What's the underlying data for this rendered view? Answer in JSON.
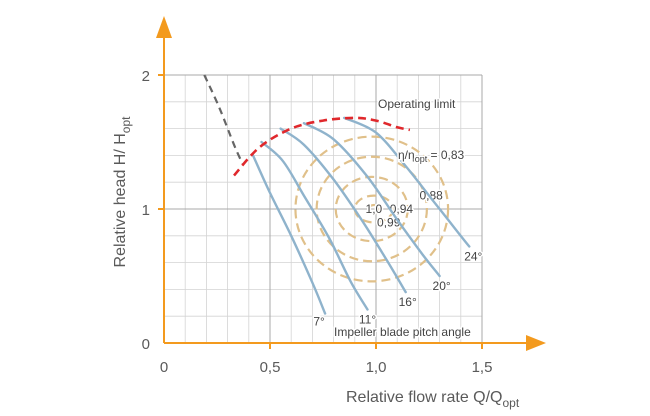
{
  "chart_data": {
    "type": "line",
    "xlabel": "Relative flow rate Q/Q",
    "xlabel_sub": "opt",
    "ylabel": "Relative head H/ H",
    "ylabel_sub": "opt",
    "xlim": [
      0,
      1.5
    ],
    "ylim": [
      0,
      2
    ],
    "x_ticks": [
      "0",
      "0,5",
      "1,0",
      "1,5"
    ],
    "y_ticks": [
      "0",
      "1",
      "2"
    ],
    "x_tick_values": [
      0,
      0.5,
      1.0,
      1.5
    ],
    "y_tick_values": [
      0,
      1,
      2
    ],
    "grid": true,
    "colors": {
      "axis": "#f39a1e",
      "curves": "#8fb3cc",
      "efficiency": "#e0c08a",
      "operating_limit": "#e0282c",
      "extension": "#666666",
      "grid": "#d4d4d4"
    },
    "series": [
      {
        "name": "7°",
        "points": [
          [
            0.42,
            1.4
          ],
          [
            0.5,
            1.12
          ],
          [
            0.6,
            0.8
          ],
          [
            0.7,
            0.45
          ],
          [
            0.76,
            0.22
          ]
        ]
      },
      {
        "name": "11°",
        "points": [
          [
            0.46,
            1.5
          ],
          [
            0.56,
            1.36
          ],
          [
            0.66,
            1.1
          ],
          [
            0.78,
            0.78
          ],
          [
            0.88,
            0.46
          ],
          [
            0.96,
            0.25
          ]
        ]
      },
      {
        "name": "16°",
        "points": [
          [
            0.55,
            1.6
          ],
          [
            0.66,
            1.48
          ],
          [
            0.8,
            1.22
          ],
          [
            0.94,
            0.9
          ],
          [
            1.05,
            0.62
          ],
          [
            1.14,
            0.38
          ]
        ]
      },
      {
        "name": "20°",
        "points": [
          [
            0.66,
            1.64
          ],
          [
            0.8,
            1.52
          ],
          [
            0.96,
            1.24
          ],
          [
            1.1,
            0.92
          ],
          [
            1.22,
            0.66
          ],
          [
            1.3,
            0.5
          ]
        ]
      },
      {
        "name": "24°",
        "points": [
          [
            0.85,
            1.68
          ],
          [
            1.0,
            1.57
          ],
          [
            1.14,
            1.32
          ],
          [
            1.26,
            1.08
          ],
          [
            1.34,
            0.92
          ],
          [
            1.44,
            0.72
          ]
        ]
      }
    ],
    "operating_limit": [
      [
        0.33,
        1.25
      ],
      [
        0.45,
        1.46
      ],
      [
        0.6,
        1.6
      ],
      [
        0.75,
        1.66
      ],
      [
        0.9,
        1.68
      ],
      [
        1.0,
        1.66
      ],
      [
        1.1,
        1.61
      ],
      [
        1.16,
        1.59
      ]
    ],
    "extension": [
      [
        0.19,
        2.0
      ],
      [
        0.26,
        1.76
      ],
      [
        0.33,
        1.48
      ],
      [
        0.37,
        1.34
      ]
    ],
    "efficiency_contours": [
      {
        "label": "1,0",
        "center": [
          0.99,
          1.0
        ],
        "rx": 0.025,
        "ry": 0.03
      },
      {
        "label": "0,99",
        "center": [
          0.99,
          1.0
        ],
        "rx": 0.09,
        "ry": 0.1
      },
      {
        "label": "0,94",
        "center": [
          0.98,
          1.0
        ],
        "rx": 0.17,
        "ry": 0.24
      },
      {
        "label": "0,88",
        "center": [
          0.98,
          1.0
        ],
        "rx": 0.26,
        "ry": 0.39
      },
      {
        "label": "0,83",
        "center": [
          0.98,
          1.0
        ],
        "rx": 0.36,
        "ry": 0.54
      }
    ],
    "annotations": {
      "operating_limit": "Operating limit",
      "eta_prefix": "η/η",
      "eta_sub": "opt",
      "eta_suffix": " = 0,83",
      "pitch_angle": "Impeller blade pitch angle"
    }
  }
}
